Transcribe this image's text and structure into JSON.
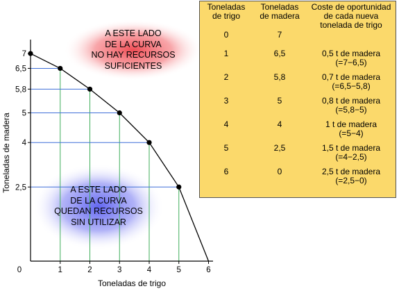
{
  "chart_data": {
    "type": "line",
    "x": [
      0,
      1,
      2,
      3,
      4,
      5,
      6
    ],
    "y": [
      7,
      6.5,
      5.8,
      5,
      4,
      2.5,
      0
    ],
    "xlabel": "Toneladas de trigo",
    "ylabel": "Toneladas de madera",
    "x_ticks": [
      "1",
      "2",
      "3",
      "4",
      "5",
      "6"
    ],
    "y_ticks": [
      {
        "value": 2.5,
        "label": "2,5"
      },
      {
        "value": 4,
        "label": "4"
      },
      {
        "value": 5,
        "label": "5"
      },
      {
        "value": 5.8,
        "label": "5,8"
      },
      {
        "value": 6.5,
        "label": "6,5"
      },
      {
        "value": 7,
        "label": "7"
      }
    ],
    "origin_label": "0",
    "xlim": [
      0,
      6
    ],
    "ylim": [
      0,
      7
    ],
    "annotations": [
      {
        "region": "above-curve",
        "lines": [
          "A ESTE LADO",
          "DE LA CURVA",
          "NO HAY RECURSOS",
          "SUFICIENTES"
        ],
        "color": "#f0444c"
      },
      {
        "region": "below-curve",
        "lines": [
          "A ESTE LADO",
          "DE LA CURVA",
          "QUEDAN RECURSOS",
          "SIN UTILIZAR"
        ],
        "color": "#5a5ef0"
      }
    ],
    "colors": {
      "curve": "#000000",
      "guide_horizontal": "#3f6fd8",
      "guide_vertical": "#3fae5a",
      "point": "#000000"
    }
  },
  "table": {
    "headers": [
      [
        "Toneladas",
        "de trigo"
      ],
      [
        "Toneladas",
        "de madera"
      ],
      [
        "Coste de oportunidad",
        "de cada nueva",
        "tonelada de trigo"
      ]
    ],
    "rows": [
      {
        "trigo": "0",
        "madera": "7",
        "coste": []
      },
      {
        "trigo": "1",
        "madera": "6,5",
        "coste": [
          "0,5 t de madera",
          "(=7−6,5)"
        ]
      },
      {
        "trigo": "2",
        "madera": "5,8",
        "coste": [
          "0,7 t de madera",
          "(=6,5−5,8)"
        ]
      },
      {
        "trigo": "3",
        "madera": "5",
        "coste": [
          "0,8 t de madera",
          "(=5,8−5)"
        ]
      },
      {
        "trigo": "4",
        "madera": "4",
        "coste": [
          "1 t de madera",
          "(=5−4)"
        ]
      },
      {
        "trigo": "5",
        "madera": "2,5",
        "coste": [
          "1,5 t de madera",
          "(=4−2,5)"
        ]
      },
      {
        "trigo": "6",
        "madera": "0",
        "coste": [
          "2,5 t de madera",
          "(=2,5−0)"
        ]
      }
    ],
    "colors": {
      "background": "#fbd96b",
      "border": "#555555"
    }
  }
}
